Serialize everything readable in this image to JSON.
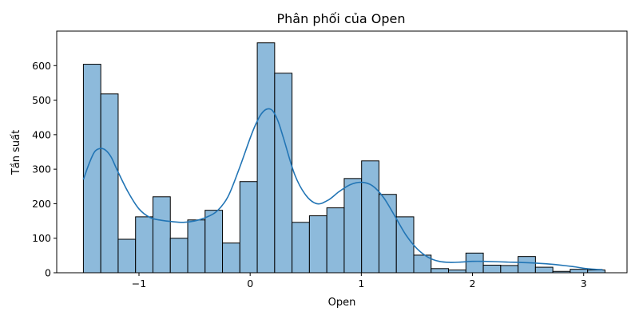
{
  "chart_data": {
    "type": "histogram",
    "title": "Phân phối của Open",
    "xlabel": "Open",
    "ylabel": "Tần suất",
    "xlim": [
      -1.74,
      3.39
    ],
    "ylim": [
      0,
      700
    ],
    "xticks": [
      -1,
      0,
      1,
      2,
      3
    ],
    "xtick_labels": [
      "−1",
      "0",
      "1",
      "2",
      "3"
    ],
    "yticks": [
      0,
      100,
      200,
      300,
      400,
      500,
      600
    ],
    "bin_start": -1.5,
    "bin_width": 0.1564,
    "counts": [
      604,
      518,
      97,
      162,
      220,
      100,
      153,
      181,
      86,
      264,
      666,
      578,
      146,
      165,
      188,
      273,
      324,
      227,
      162,
      51,
      12,
      8,
      57,
      22,
      21,
      47,
      16,
      4,
      10,
      8
    ],
    "bar_color": "#8dbadb",
    "bar_edge_color": "#000000",
    "kde": {
      "color": "#2275b5",
      "x": [
        -1.5,
        -1.45,
        -1.4,
        -1.35,
        -1.3,
        -1.25,
        -1.2,
        -1.1,
        -1.0,
        -0.9,
        -0.8,
        -0.7,
        -0.6,
        -0.5,
        -0.4,
        -0.3,
        -0.2,
        -0.1,
        0.0,
        0.05,
        0.1,
        0.15,
        0.2,
        0.25,
        0.3,
        0.4,
        0.5,
        0.6,
        0.7,
        0.8,
        0.9,
        1.0,
        1.1,
        1.2,
        1.3,
        1.4,
        1.5,
        1.6,
        1.7,
        1.8,
        1.9,
        2.0,
        2.1,
        2.3,
        2.5,
        2.7,
        2.9,
        3.0,
        3.1,
        3.17
      ],
      "y": [
        270,
        315,
        350,
        360,
        355,
        335,
        300,
        235,
        185,
        160,
        152,
        148,
        146,
        150,
        160,
        178,
        220,
        300,
        390,
        430,
        460,
        474,
        470,
        440,
        390,
        285,
        225,
        200,
        210,
        235,
        255,
        262,
        252,
        218,
        165,
        110,
        70,
        45,
        33,
        30,
        31,
        33,
        33,
        31,
        29,
        25,
        18,
        13,
        10,
        9
      ]
    }
  }
}
